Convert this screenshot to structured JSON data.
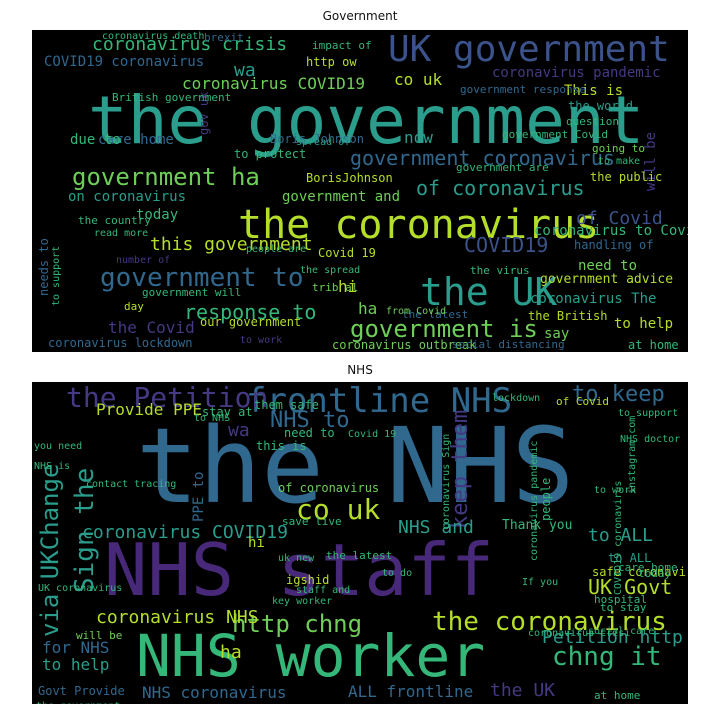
{
  "figure": {
    "panels": [
      {
        "title": "Government",
        "words": [
          {
            "text": "the government",
            "color": "#2a9d8c"
          },
          {
            "text": "UK government",
            "color": "#3b528b"
          },
          {
            "text": "the coronavirus",
            "color": "#b5de2b"
          },
          {
            "text": "the UK",
            "color": "#2a9d8c"
          },
          {
            "text": "government is",
            "color": "#6ece58"
          },
          {
            "text": "government to",
            "color": "#31688e"
          },
          {
            "text": "coronavirus crisis",
            "color": "#35b779"
          },
          {
            "text": "government ha",
            "color": "#6ece58"
          },
          {
            "text": "government coronavirus",
            "color": "#31688e"
          },
          {
            "text": "of coronavirus",
            "color": "#2a9d8c"
          },
          {
            "text": "COVID19",
            "color": "#3b528b"
          },
          {
            "text": "this government",
            "color": "#b5de2b"
          },
          {
            "text": "response to",
            "color": "#35b779"
          },
          {
            "text": "of Covid",
            "color": "#3b528b"
          },
          {
            "text": "coronavirus COVID19",
            "color": "#6ece58"
          },
          {
            "text": "co uk",
            "color": "#b5de2b"
          },
          {
            "text": "coronavirus pandemic",
            "color": "#443983"
          },
          {
            "text": "COVID19 coronavirus",
            "color": "#31688e"
          },
          {
            "text": "the Covid",
            "color": "#443983"
          },
          {
            "text": "coronavirus to Covid",
            "color": "#35b779"
          },
          {
            "text": "government advice",
            "color": "#b5de2b"
          },
          {
            "text": "coronavirus The",
            "color": "#2a9d8c"
          },
          {
            "text": "need to",
            "color": "#6ece58"
          },
          {
            "text": "to help",
            "color": "#b5de2b"
          },
          {
            "text": "now",
            "color": "#2a9d8c"
          },
          {
            "text": "will be",
            "color": "#443983"
          },
          {
            "text": "wa",
            "color": "#2a9d8c"
          },
          {
            "text": "This is",
            "color": "#b5de2b"
          },
          {
            "text": "the world",
            "color": "#2a9d8c"
          },
          {
            "text": "Boris Johnson",
            "color": "#31688e"
          },
          {
            "text": "BorisJohnson",
            "color": "#b5de2b"
          },
          {
            "text": "care home",
            "color": "#31688e"
          },
          {
            "text": "due to",
            "color": "#35b779"
          },
          {
            "text": "on coronavirus",
            "color": "#2a9d8c"
          },
          {
            "text": "today",
            "color": "#35b779"
          },
          {
            "text": "government and",
            "color": "#6ece58"
          },
          {
            "text": "handling of",
            "color": "#31688e"
          },
          {
            "text": "Covid 19",
            "color": "#b5de2b"
          },
          {
            "text": "hi",
            "color": "#b5de2b"
          },
          {
            "text": "ha",
            "color": "#6ece58"
          },
          {
            "text": "say",
            "color": "#6ece58"
          },
          {
            "text": "the British",
            "color": "#b5de2b"
          },
          {
            "text": "our government",
            "color": "#b5de2b"
          },
          {
            "text": "coronavirus lockdown",
            "color": "#31688e"
          },
          {
            "text": "coronavirus outbreak",
            "color": "#6ece58"
          },
          {
            "text": "at home",
            "color": "#35b779"
          },
          {
            "text": "http ow",
            "color": "#b5de2b"
          },
          {
            "text": "impact of",
            "color": "#35b779"
          },
          {
            "text": "gov uk",
            "color": "#443983"
          },
          {
            "text": "question",
            "color": "#35b779"
          },
          {
            "text": "to protect",
            "color": "#35b779"
          },
          {
            "text": "the public",
            "color": "#b5de2b"
          },
          {
            "text": "going to",
            "color": "#6ece58"
          },
          {
            "text": "day",
            "color": "#b5de2b"
          },
          {
            "text": "government will",
            "color": "#35b779"
          },
          {
            "text": "the latest",
            "color": "#31688e"
          },
          {
            "text": "the country",
            "color": "#35b779"
          },
          {
            "text": "government response",
            "color": "#31688e"
          },
          {
            "text": "the virus",
            "color": "#35b779"
          },
          {
            "text": "people are",
            "color": "#35b779"
          },
          {
            "text": "needs to",
            "color": "#31688e"
          },
          {
            "text": "government are",
            "color": "#35b779"
          },
          {
            "text": "trib al",
            "color": "#6ece58"
          },
          {
            "text": "the spread",
            "color": "#35b779"
          },
          {
            "text": "number of",
            "color": "#443983"
          },
          {
            "text": "British government",
            "color": "#35b779"
          },
          {
            "text": "to work",
            "color": "#443983"
          },
          {
            "text": "to make",
            "color": "#35b779"
          },
          {
            "text": "spread of",
            "color": "#2a9d8c"
          },
          {
            "text": "coronavirus death",
            "color": "#35b779"
          },
          {
            "text": "brexit",
            "color": "#31688e"
          },
          {
            "text": "social distancing",
            "color": "#31688e"
          },
          {
            "text": "government Covid",
            "color": "#35b779"
          },
          {
            "text": "read more",
            "color": "#35b779"
          },
          {
            "text": "to support",
            "color": "#35b779"
          },
          {
            "text": "from Covid",
            "color": "#6ece58"
          }
        ]
      },
      {
        "title": "NHS",
        "words": [
          {
            "text": "the NHS",
            "color": "#31688e"
          },
          {
            "text": "NHS staff",
            "color": "#482878"
          },
          {
            "text": "NHS worker",
            "color": "#35b779"
          },
          {
            "text": "frontline NHS",
            "color": "#31688e"
          },
          {
            "text": "the Petition",
            "color": "#443983"
          },
          {
            "text": "to keep",
            "color": "#31688e"
          },
          {
            "text": "NHS to",
            "color": "#31688e"
          },
          {
            "text": "via UKChange",
            "color": "#2a9d8c"
          },
          {
            "text": "Sign the",
            "color": "#2a9d8c"
          },
          {
            "text": "keep them",
            "color": "#443983"
          },
          {
            "text": "co uk",
            "color": "#b5de2b"
          },
          {
            "text": "http chng",
            "color": "#6ece58"
          },
          {
            "text": "the coronavirus",
            "color": "#b5de2b"
          },
          {
            "text": "chng it",
            "color": "#35b779"
          },
          {
            "text": "coronavirus COVID19",
            "color": "#2a9d8c"
          },
          {
            "text": "coronavirus NHS",
            "color": "#b5de2b"
          },
          {
            "text": "NHS and",
            "color": "#2a9d8c"
          },
          {
            "text": "to ALL",
            "color": "#2a9d8c"
          },
          {
            "text": "UK Govt",
            "color": "#b5de2b"
          },
          {
            "text": "Petition http",
            "color": "#2a9d8c"
          },
          {
            "text": "Provide PPE",
            "color": "#b5de2b"
          },
          {
            "text": "PPE to",
            "color": "#31688e"
          },
          {
            "text": "for NHS",
            "color": "#31688e"
          },
          {
            "text": "to help",
            "color": "#2a9d8c"
          },
          {
            "text": "NHS coronavirus",
            "color": "#31688e"
          },
          {
            "text": "ALL frontline",
            "color": "#31688e"
          },
          {
            "text": "the UK",
            "color": "#443983"
          },
          {
            "text": "wa",
            "color": "#443983"
          },
          {
            "text": "ha",
            "color": "#b5de2b"
          },
          {
            "text": "hi",
            "color": "#b5de2b"
          },
          {
            "text": "Govt Provide",
            "color": "#31688e"
          },
          {
            "text": "at home",
            "color": "#35b779"
          },
          {
            "text": "of coronavirus",
            "color": "#6ece58"
          },
          {
            "text": "Thank you",
            "color": "#35b779"
          },
          {
            "text": "this is",
            "color": "#35b779"
          },
          {
            "text": "them safe",
            "color": "#35b779"
          },
          {
            "text": "need to",
            "color": "#35b779"
          },
          {
            "text": "stay at",
            "color": "#35b779"
          },
          {
            "text": "save live",
            "color": "#35b779"
          },
          {
            "text": "will be",
            "color": "#6ece58"
          },
          {
            "text": "the latest",
            "color": "#35b779"
          },
          {
            "text": "safe coronavirus",
            "color": "#b5de2b"
          },
          {
            "text": "to stay",
            "color": "#35b779"
          },
          {
            "text": "to work",
            "color": "#35b779"
          },
          {
            "text": "hospital",
            "color": "#35b779"
          },
          {
            "text": "today",
            "color": "#35b779"
          },
          {
            "text": "care home",
            "color": "#35b779"
          },
          {
            "text": "of Covid",
            "color": "#b5de2b"
          },
          {
            "text": "to support",
            "color": "#35b779"
          },
          {
            "text": "to NHS",
            "color": "#35b779"
          },
          {
            "text": "you need",
            "color": "#35b779"
          },
          {
            "text": "igshid",
            "color": "#b5de2b"
          },
          {
            "text": "uk new",
            "color": "#35b779"
          },
          {
            "text": "contact tracing",
            "color": "#35b779"
          },
          {
            "text": "people",
            "color": "#35b779"
          },
          {
            "text": "If you",
            "color": "#35b779"
          },
          {
            "text": "key worker",
            "color": "#35b779"
          },
          {
            "text": "to do",
            "color": "#35b779"
          },
          {
            "text": "coronavirus Sign",
            "color": "#35b779"
          },
          {
            "text": "NHS is",
            "color": "#35b779"
          },
          {
            "text": "UK coronavirus",
            "color": "#35b779"
          },
          {
            "text": "the government",
            "color": "#35b779"
          },
          {
            "text": "social care",
            "color": "#35b779"
          },
          {
            "text": "staff and",
            "color": "#35b779"
          },
          {
            "text": "lockdown",
            "color": "#35b779"
          },
          {
            "text": "coronavirus crisi",
            "color": "#35b779"
          },
          {
            "text": "Covid 19",
            "color": "#35b779"
          },
          {
            "text": "COVID19 coronavirus",
            "color": "#35b779"
          },
          {
            "text": "instagram com",
            "color": "#35b779"
          },
          {
            "text": "NHS doctor",
            "color": "#35b779"
          },
          {
            "text": "coronavirus pandemic",
            "color": "#35b779"
          },
          {
            "text": "to ALL",
            "color": "#2a9d8c"
          }
        ]
      }
    ]
  }
}
